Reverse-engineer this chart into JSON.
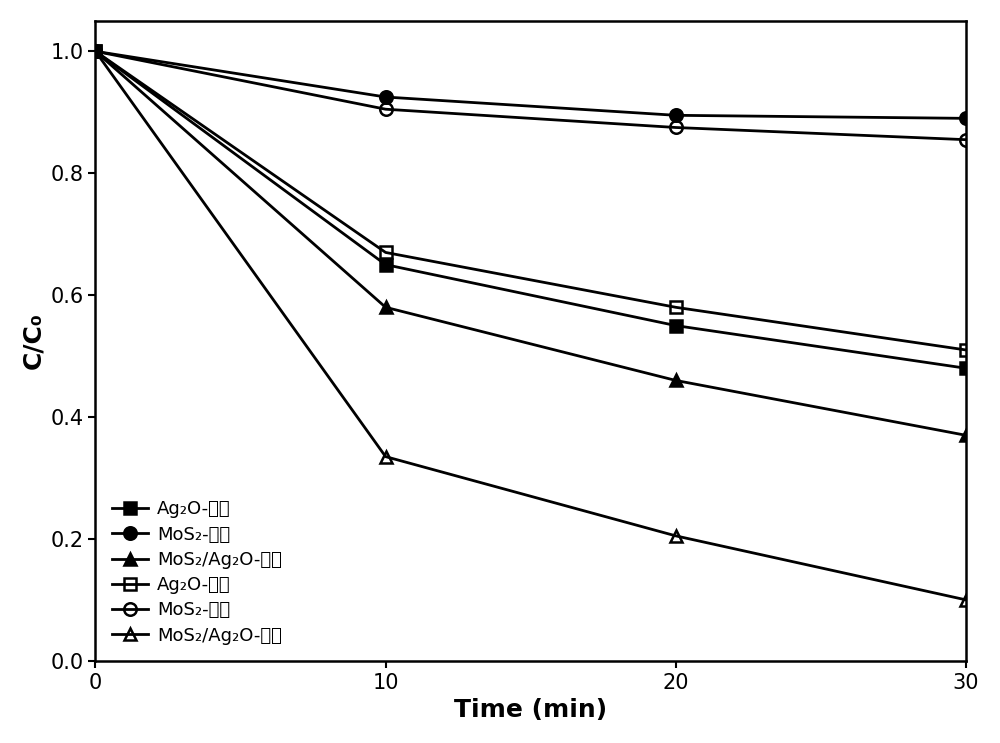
{
  "x": [
    0,
    10,
    20,
    30
  ],
  "series": [
    {
      "label": "Ag₂O-磁力",
      "values": [
        1.0,
        0.65,
        0.55,
        0.48
      ],
      "marker": "s",
      "fillstyle": "full",
      "color": "black"
    },
    {
      "label": "MoS₂-磁力",
      "values": [
        1.0,
        0.925,
        0.895,
        0.89
      ],
      "marker": "o",
      "fillstyle": "full",
      "color": "black"
    },
    {
      "label": "MoS₂/Ag₂O-磁力",
      "values": [
        1.0,
        0.58,
        0.46,
        0.37
      ],
      "marker": "^",
      "fillstyle": "full",
      "color": "black"
    },
    {
      "label": "Ag₂O-超声",
      "values": [
        1.0,
        0.67,
        0.58,
        0.51
      ],
      "marker": "s",
      "fillstyle": "none",
      "color": "black"
    },
    {
      "label": "MoS₂-超声",
      "values": [
        1.0,
        0.905,
        0.875,
        0.855
      ],
      "marker": "o",
      "fillstyle": "none",
      "color": "black"
    },
    {
      "label": "MoS₂/Ag₂O-超声",
      "values": [
        1.0,
        0.335,
        0.205,
        0.1
      ],
      "marker": "^",
      "fillstyle": "none",
      "color": "black"
    }
  ],
  "xlabel": "Time (min)",
  "ylabel": "C/C₀",
  "xlim": [
    0,
    30
  ],
  "ylim": [
    0.0,
    1.05
  ],
  "yticks": [
    0.0,
    0.2,
    0.4,
    0.6,
    0.8,
    1.0
  ],
  "xticks": [
    0,
    10,
    20,
    30
  ],
  "legend_loc": "lower left",
  "background_color": "white",
  "linewidth": 2.0,
  "markersize": 9
}
